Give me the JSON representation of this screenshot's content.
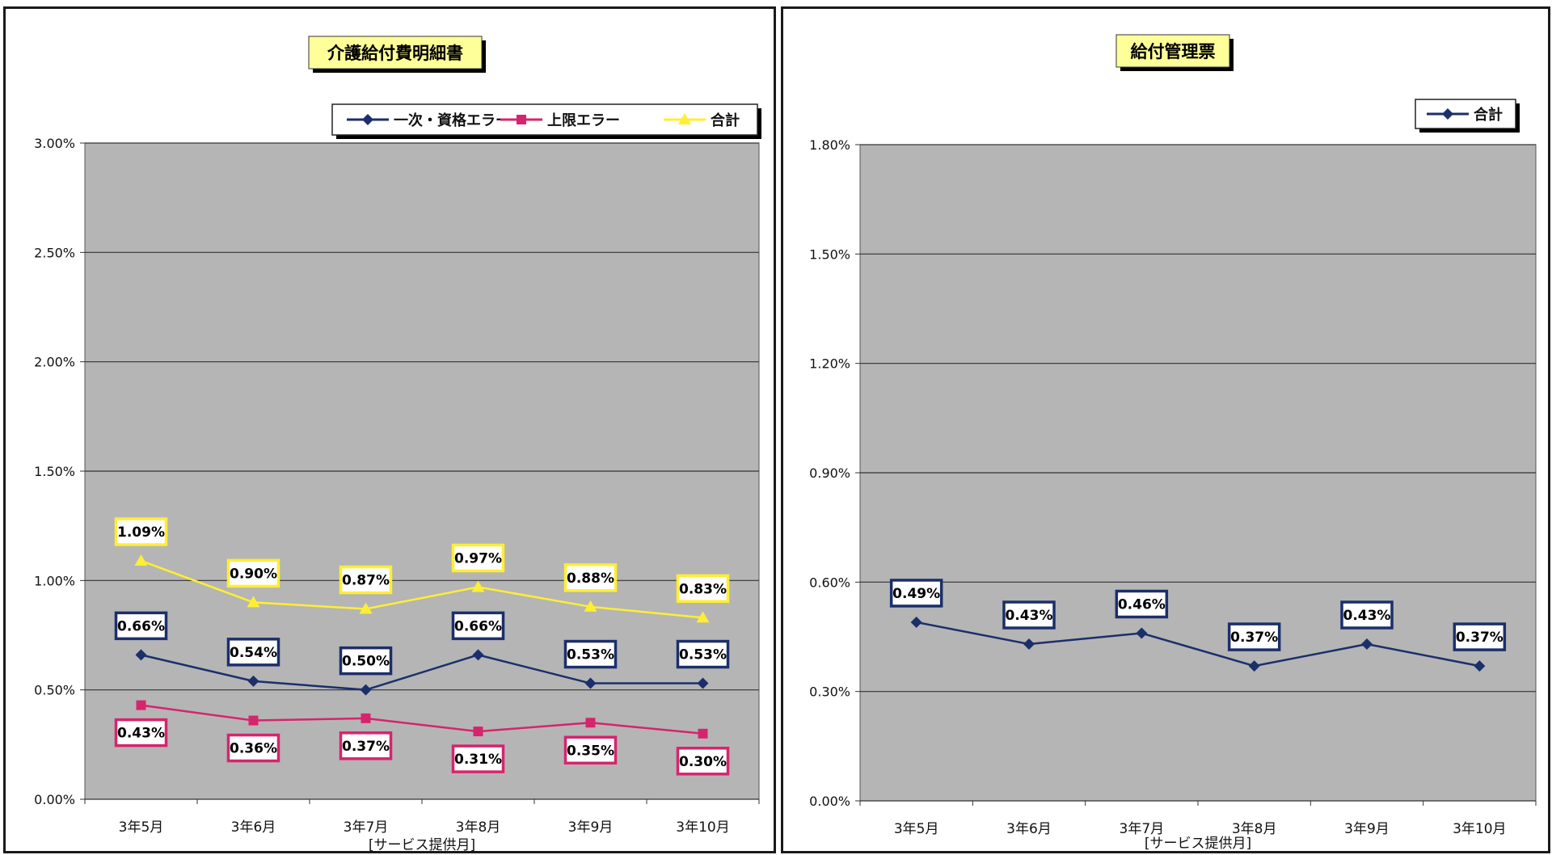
{
  "colors": {
    "plot_bg": "#b5b5b5",
    "grid": "#333333",
    "series_1": "#1b2f6b",
    "series_2": "#d6246e",
    "series_3": "#ffee33",
    "title_bg": "#ffff99",
    "shadow": "#000000"
  },
  "chart_data": [
    {
      "type": "line",
      "title": "介護給付費明細書",
      "xlabel": "[サービス提供月]",
      "ylabel": "",
      "categories": [
        "3年5月",
        "3年6月",
        "3年7月",
        "3年8月",
        "3年9月",
        "3年10月"
      ],
      "ylim": [
        0,
        3.0
      ],
      "y_ticks": [
        0,
        0.5,
        1.0,
        1.5,
        2.0,
        2.5,
        3.0
      ],
      "y_tick_labels": [
        "0.00%",
        "0.50%",
        "1.00%",
        "1.50%",
        "2.00%",
        "2.50%",
        "3.00%"
      ],
      "grid": true,
      "legend_position": "top-right",
      "series": [
        {
          "name": "一次・資格エラー",
          "marker": "diamond",
          "values": [
            0.66,
            0.54,
            0.5,
            0.66,
            0.53,
            0.53
          ],
          "labels": [
            "0.66%",
            "0.54%",
            "0.50%",
            "0.66%",
            "0.53%",
            "0.53%"
          ],
          "label_position": "above"
        },
        {
          "name": "上限エラー",
          "marker": "square",
          "values": [
            0.43,
            0.36,
            0.37,
            0.31,
            0.35,
            0.3
          ],
          "labels": [
            "0.43%",
            "0.36%",
            "0.37%",
            "0.31%",
            "0.35%",
            "0.30%"
          ],
          "label_position": "below"
        },
        {
          "name": "合計",
          "marker": "triangle",
          "values": [
            1.09,
            0.9,
            0.87,
            0.97,
            0.88,
            0.83
          ],
          "labels": [
            "1.09%",
            "0.90%",
            "0.87%",
            "0.97%",
            "0.88%",
            "0.83%"
          ],
          "label_position": "above"
        }
      ]
    },
    {
      "type": "line",
      "title": "給付管理票",
      "xlabel": "[サービス提供月]",
      "ylabel": "",
      "categories": [
        "3年5月",
        "3年6月",
        "3年7月",
        "3年8月",
        "3年9月",
        "3年10月"
      ],
      "ylim": [
        0,
        1.8
      ],
      "y_ticks": [
        0,
        0.3,
        0.6,
        0.9,
        1.2,
        1.5,
        1.8
      ],
      "y_tick_labels": [
        "0.00%",
        "0.30%",
        "0.60%",
        "0.90%",
        "1.20%",
        "1.50%",
        "1.80%"
      ],
      "grid": true,
      "legend_position": "top-right",
      "series": [
        {
          "name": "合計",
          "marker": "diamond",
          "values": [
            0.49,
            0.43,
            0.46,
            0.37,
            0.43,
            0.37
          ],
          "labels": [
            "0.49%",
            "0.43%",
            "0.46%",
            "0.37%",
            "0.43%",
            "0.37%"
          ],
          "label_position": "above"
        }
      ]
    }
  ]
}
